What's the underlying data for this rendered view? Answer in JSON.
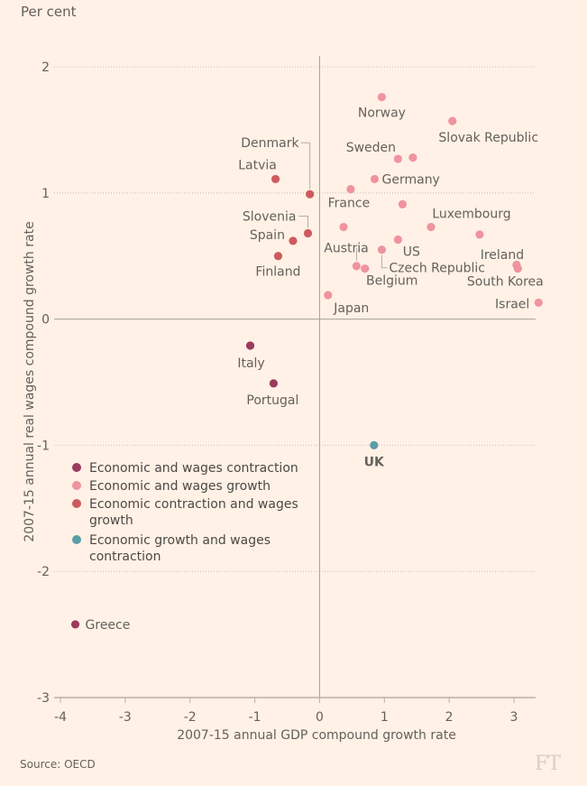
{
  "header": {
    "unit_label": "Per cent"
  },
  "footer": {
    "source": "Source: OECD",
    "logo": "FT"
  },
  "chart_data": {
    "type": "scatter",
    "title": "",
    "xlabel": "2007-15 annual GDP compound growth rate",
    "ylabel": "2007-15 annual real wages compound growth rate",
    "xlim": [
      -4,
      3.35
    ],
    "ylim": [
      -3,
      2
    ],
    "xticks": [
      -4,
      -3,
      -2,
      -1,
      0,
      1,
      2,
      3
    ],
    "yticks": [
      2,
      1,
      0,
      -1,
      -2,
      -3
    ],
    "grid": "horizontal-dotted",
    "legend_position": "bottom-left inside",
    "categories": [
      {
        "key": "cc",
        "name": "Economic and wages contraction",
        "color": "#9a3a5e"
      },
      {
        "key": "gg",
        "name": "Economic and wages growth",
        "color": "#ef93a0"
      },
      {
        "key": "cg",
        "name": "Economic contraction and wages growth",
        "color": "#cd5a5e"
      },
      {
        "key": "gc",
        "name": "Economic growth and wages contraction",
        "color": "#5a9ca8"
      }
    ],
    "points": [
      {
        "label": "Norway",
        "x": 0.96,
        "y": 1.76,
        "cat": "gg"
      },
      {
        "label": "Slovak Republic",
        "x": 2.05,
        "y": 1.57,
        "cat": "gg"
      },
      {
        "label": "Sweden",
        "x": 1.21,
        "y": 1.27,
        "cat": "gg"
      },
      {
        "label": "",
        "x": 1.44,
        "y": 1.28,
        "cat": "gg"
      },
      {
        "label": "Germany",
        "x": 0.85,
        "y": 1.11,
        "cat": "gg"
      },
      {
        "label": "France",
        "x": 0.48,
        "y": 1.03,
        "cat": "gg"
      },
      {
        "label": "",
        "x": 1.28,
        "y": 0.91,
        "cat": "gg"
      },
      {
        "label": "Luxembourg",
        "x": 1.72,
        "y": 0.73,
        "cat": "gg"
      },
      {
        "label": "Austria",
        "x": 0.37,
        "y": 0.73,
        "cat": "gg"
      },
      {
        "label": "US",
        "x": 1.21,
        "y": 0.63,
        "cat": "gg"
      },
      {
        "label": "Czech Republic",
        "x": 0.96,
        "y": 0.55,
        "cat": "gg"
      },
      {
        "label": "",
        "x": 0.57,
        "y": 0.42,
        "cat": "gg"
      },
      {
        "label": "Belgium",
        "x": 0.7,
        "y": 0.4,
        "cat": "gg"
      },
      {
        "label": "Ireland",
        "x": 2.47,
        "y": 0.67,
        "cat": "gg"
      },
      {
        "label": "",
        "x": 3.04,
        "y": 0.43,
        "cat": "gg"
      },
      {
        "label": "South Korea",
        "x": 3.06,
        "y": 0.4,
        "cat": "gg"
      },
      {
        "label": "Israel",
        "x": 3.38,
        "y": 0.13,
        "cat": "gg"
      },
      {
        "label": "Japan",
        "x": 0.13,
        "y": 0.19,
        "cat": "gg"
      },
      {
        "label": "Denmark",
        "x": -0.15,
        "y": 0.99,
        "cat": "cg"
      },
      {
        "label": "Latvia",
        "x": -0.68,
        "y": 1.11,
        "cat": "cg"
      },
      {
        "label": "Slovenia",
        "x": -0.18,
        "y": 0.68,
        "cat": "cg"
      },
      {
        "label": "Spain",
        "x": -0.41,
        "y": 0.62,
        "cat": "cg"
      },
      {
        "label": "Finland",
        "x": -0.64,
        "y": 0.5,
        "cat": "cg"
      },
      {
        "label": "Italy",
        "x": -1.07,
        "y": -0.21,
        "cat": "cc"
      },
      {
        "label": "Portugal",
        "x": -0.71,
        "y": -0.51,
        "cat": "cc"
      },
      {
        "label": "Greece",
        "x": -3.77,
        "y": -2.42,
        "cat": "cc"
      },
      {
        "label": "UK",
        "x": 0.84,
        "y": -1.0,
        "cat": "gc",
        "bold": true
      }
    ]
  },
  "legend": {
    "items": [
      {
        "lines": [
          "Economic and wages contraction"
        ],
        "color": "#9a3a5e"
      },
      {
        "lines": [
          "Economic and wages growth"
        ],
        "color": "#ef93a0"
      },
      {
        "lines": [
          "Economic contraction and wages",
          "growth"
        ],
        "color": "#cd5a5e"
      },
      {
        "lines": [
          "Economic growth and wages",
          "contraction"
        ],
        "color": "#5a9ca8"
      }
    ]
  }
}
